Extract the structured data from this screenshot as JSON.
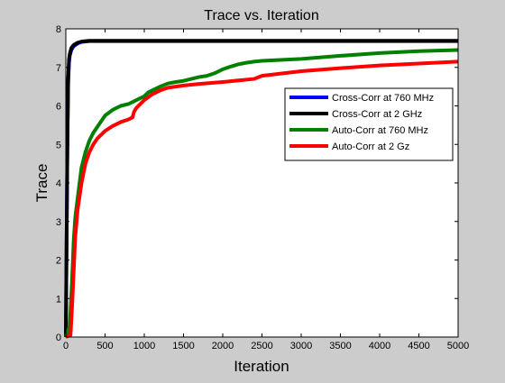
{
  "chart_data": {
    "type": "line",
    "title": "Trace vs. Iteration",
    "xlabel": "Iteration",
    "ylabel": "Trace",
    "xlim": [
      0,
      5000
    ],
    "ylim": [
      0,
      8
    ],
    "xticks": [
      0,
      500,
      1000,
      1500,
      2000,
      2500,
      3000,
      3500,
      4000,
      4500,
      5000
    ],
    "yticks": [
      0,
      1,
      2,
      3,
      4,
      5,
      6,
      7,
      8
    ],
    "grid": false,
    "legend_position": "right",
    "series": [
      {
        "name": "Cross-Corr at 760 MHz",
        "color": "#0000ff",
        "x": [
          0,
          10,
          20,
          30,
          40,
          50,
          70,
          100,
          150,
          200,
          300,
          500,
          1000,
          2000,
          3000,
          4000,
          5000
        ],
        "y": [
          0.0,
          2.5,
          5.0,
          6.6,
          7.1,
          7.3,
          7.45,
          7.55,
          7.62,
          7.66,
          7.68,
          7.68,
          7.68,
          7.68,
          7.68,
          7.68,
          7.68
        ]
      },
      {
        "name": "Cross-Corr at 2 GHz",
        "color": "#000000",
        "x": [
          0,
          10,
          20,
          30,
          40,
          50,
          70,
          100,
          150,
          200,
          300,
          500,
          1000,
          2000,
          3000,
          4000,
          5000
        ],
        "y": [
          0.0,
          2.5,
          5.0,
          6.7,
          7.2,
          7.35,
          7.5,
          7.58,
          7.64,
          7.67,
          7.69,
          7.69,
          7.69,
          7.69,
          7.69,
          7.69,
          7.69
        ]
      },
      {
        "name": "Auto-Corr at 760 MHz",
        "color": "#008000",
        "x": [
          0,
          50,
          80,
          100,
          120,
          150,
          200,
          250,
          300,
          350,
          400,
          500,
          600,
          700,
          800,
          900,
          1000,
          1050,
          1100,
          1200,
          1300,
          1400,
          1500,
          1600,
          1700,
          1800,
          1900,
          2000,
          2100,
          2200,
          2300,
          2400,
          2500,
          3000,
          3500,
          4000,
          4500,
          5000
        ],
        "y": [
          0.0,
          0.3,
          1.5,
          2.5,
          3.1,
          3.6,
          4.4,
          4.8,
          5.1,
          5.3,
          5.45,
          5.75,
          5.9,
          6.0,
          6.05,
          6.15,
          6.25,
          6.35,
          6.4,
          6.5,
          6.58,
          6.62,
          6.65,
          6.7,
          6.75,
          6.78,
          6.85,
          6.95,
          7.02,
          7.08,
          7.12,
          7.15,
          7.17,
          7.22,
          7.3,
          7.37,
          7.42,
          7.45
        ]
      },
      {
        "name": "Auto-Corr at 2 Gz",
        "color": "#ff0000",
        "x": [
          0,
          60,
          80,
          100,
          120,
          150,
          200,
          250,
          300,
          350,
          400,
          500,
          600,
          700,
          800,
          850,
          870,
          900,
          950,
          1000,
          1100,
          1200,
          1300,
          1500,
          1700,
          2000,
          2200,
          2400,
          2500,
          3000,
          3500,
          4000,
          4500,
          5000
        ],
        "y": [
          0.0,
          0.05,
          0.8,
          1.7,
          2.6,
          3.3,
          4.0,
          4.5,
          4.8,
          5.0,
          5.15,
          5.35,
          5.48,
          5.58,
          5.65,
          5.7,
          5.85,
          5.95,
          6.05,
          6.15,
          6.3,
          6.4,
          6.47,
          6.53,
          6.57,
          6.62,
          6.66,
          6.7,
          6.78,
          6.9,
          6.98,
          7.05,
          7.1,
          7.15
        ]
      }
    ]
  }
}
